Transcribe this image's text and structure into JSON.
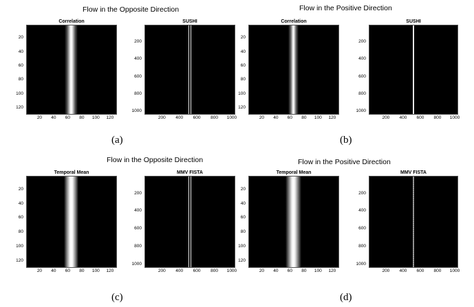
{
  "groups": [
    {
      "title": "Flow in the Opposite Direction",
      "caption": "(a)",
      "panels": [
        {
          "title": "Correlation",
          "band": "soft",
          "center": 64,
          "xlim": [
            1,
            128
          ],
          "ylim": [
            1,
            128
          ],
          "x_ticks": [
            "20",
            "40",
            "60",
            "80",
            "100",
            "120"
          ],
          "y_ticks": [
            "20",
            "40",
            "60",
            "80",
            "100",
            "120"
          ]
        },
        {
          "title": "SUSHI",
          "band": "double",
          "center": 512,
          "xlim": [
            1,
            1024
          ],
          "ylim": [
            1,
            1024
          ],
          "x_ticks": [
            "200",
            "400",
            "600",
            "800",
            "1000"
          ],
          "y_ticks": [
            "200",
            "400",
            "600",
            "800",
            "1000"
          ]
        }
      ]
    },
    {
      "title": "Flow in the Positive Direction",
      "caption": "(b)",
      "panels": [
        {
          "title": "Correlation",
          "band": "soft-narrow",
          "center": 64,
          "xlim": [
            1,
            128
          ],
          "ylim": [
            1,
            128
          ],
          "x_ticks": [
            "20",
            "40",
            "60",
            "80",
            "100",
            "120"
          ],
          "y_ticks": [
            "20",
            "40",
            "60",
            "80",
            "100",
            "120"
          ]
        },
        {
          "title": "SUSHI",
          "band": "single",
          "center": 512,
          "xlim": [
            1,
            1024
          ],
          "ylim": [
            1,
            1024
          ],
          "x_ticks": [
            "200",
            "400",
            "600",
            "800",
            "1000"
          ],
          "y_ticks": [
            "200",
            "400",
            "600",
            "800",
            "1000"
          ]
        }
      ]
    },
    {
      "title": "Flow in the Opposite Direction",
      "caption": "(c)",
      "panels": [
        {
          "title": "Temporal Mean",
          "band": "wide",
          "center": 64,
          "xlim": [
            1,
            128
          ],
          "ylim": [
            1,
            128
          ],
          "x_ticks": [
            "20",
            "40",
            "60",
            "80",
            "100",
            "120"
          ],
          "y_ticks": [
            "20",
            "40",
            "60",
            "80",
            "100",
            "120"
          ]
        },
        {
          "title": "MMV FISTA",
          "band": "double",
          "center": 512,
          "xlim": [
            1,
            1024
          ],
          "ylim": [
            1,
            1024
          ],
          "x_ticks": [
            "200",
            "400",
            "600",
            "800",
            "1000"
          ],
          "y_ticks": [
            "200",
            "400",
            "600",
            "800",
            "1000"
          ]
        }
      ]
    },
    {
      "title": "Flow in the Positive Direction",
      "caption": "(d)",
      "panels": [
        {
          "title": "Temporal Mean",
          "band": "wide-noisy",
          "center": 64,
          "xlim": [
            1,
            128
          ],
          "ylim": [
            1,
            128
          ],
          "x_ticks": [
            "20",
            "40",
            "60",
            "80",
            "100",
            "120"
          ],
          "y_ticks": [
            "20",
            "40",
            "60",
            "80",
            "100",
            "120"
          ]
        },
        {
          "title": "MMV FISTA",
          "band": "dim-single",
          "center": 512,
          "xlim": [
            1,
            1024
          ],
          "ylim": [
            1,
            1024
          ],
          "x_ticks": [
            "200",
            "400",
            "600",
            "800",
            "1000"
          ],
          "y_ticks": [
            "200",
            "400",
            "600",
            "800",
            "1000"
          ]
        }
      ]
    }
  ]
}
